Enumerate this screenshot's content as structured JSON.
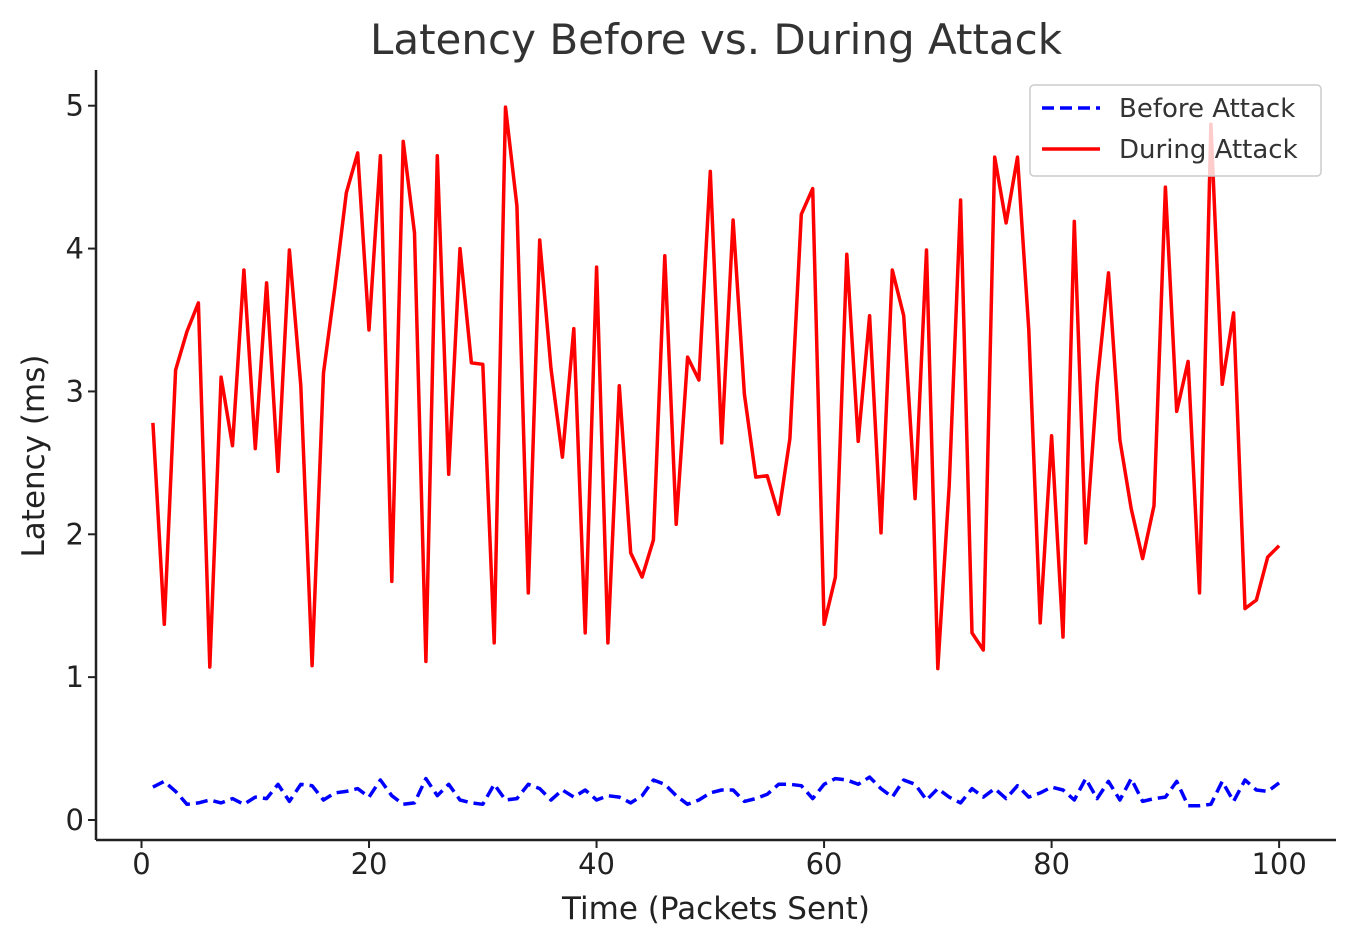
{
  "chart_data": {
    "type": "line",
    "title": "Latency Before vs. During Attack",
    "xlabel": "Time (Packets Sent)",
    "ylabel": "Latency (ms)",
    "xlim": [
      -4,
      105
    ],
    "ylim": [
      -0.14,
      5.25
    ],
    "xticks": [
      0,
      20,
      40,
      60,
      80,
      100
    ],
    "yticks": [
      0,
      1,
      2,
      3,
      4,
      5
    ],
    "grid": false,
    "legend_position": "top-right",
    "x": [
      1,
      2,
      3,
      4,
      5,
      6,
      7,
      8,
      9,
      10,
      11,
      12,
      13,
      14,
      15,
      16,
      17,
      18,
      19,
      20,
      21,
      22,
      23,
      24,
      25,
      26,
      27,
      28,
      29,
      30,
      31,
      32,
      33,
      34,
      35,
      36,
      37,
      38,
      39,
      40,
      41,
      42,
      43,
      44,
      45,
      46,
      47,
      48,
      49,
      50,
      51,
      52,
      53,
      54,
      55,
      56,
      57,
      58,
      59,
      60,
      61,
      62,
      63,
      64,
      65,
      66,
      67,
      68,
      69,
      70,
      71,
      72,
      73,
      74,
      75,
      76,
      77,
      78,
      79,
      80,
      81,
      82,
      83,
      84,
      85,
      86,
      87,
      88,
      89,
      90,
      91,
      92,
      93,
      94,
      95,
      96,
      97,
      98,
      99,
      100
    ],
    "series": [
      {
        "name": "Before Attack",
        "color": "#0000ff",
        "style": "dashed",
        "values": [
          0.23,
          0.27,
          0.2,
          0.11,
          0.12,
          0.14,
          0.12,
          0.15,
          0.11,
          0.16,
          0.15,
          0.25,
          0.13,
          0.25,
          0.24,
          0.14,
          0.19,
          0.2,
          0.22,
          0.16,
          0.28,
          0.17,
          0.11,
          0.12,
          0.29,
          0.17,
          0.25,
          0.14,
          0.12,
          0.11,
          0.25,
          0.14,
          0.15,
          0.25,
          0.22,
          0.14,
          0.21,
          0.16,
          0.21,
          0.14,
          0.17,
          0.16,
          0.12,
          0.17,
          0.28,
          0.25,
          0.17,
          0.11,
          0.14,
          0.19,
          0.21,
          0.21,
          0.13,
          0.15,
          0.18,
          0.25,
          0.25,
          0.24,
          0.15,
          0.25,
          0.29,
          0.28,
          0.25,
          0.3,
          0.22,
          0.16,
          0.28,
          0.25,
          0.14,
          0.22,
          0.16,
          0.12,
          0.22,
          0.16,
          0.22,
          0.15,
          0.24,
          0.16,
          0.19,
          0.23,
          0.21,
          0.14,
          0.29,
          0.15,
          0.27,
          0.14,
          0.29,
          0.13,
          0.15,
          0.16,
          0.27,
          0.1,
          0.1,
          0.11,
          0.27,
          0.13,
          0.28,
          0.21,
          0.2,
          0.26
        ]
      },
      {
        "name": "During Attack",
        "color": "#ff0000",
        "style": "solid",
        "values": [
          2.78,
          1.37,
          3.15,
          3.42,
          3.62,
          1.07,
          3.1,
          2.62,
          3.85,
          2.6,
          3.76,
          2.44,
          3.99,
          3.04,
          1.08,
          3.13,
          3.73,
          4.39,
          4.67,
          3.43,
          4.65,
          1.67,
          4.75,
          4.11,
          1.11,
          4.65,
          2.42,
          4.0,
          3.2,
          3.19,
          1.24,
          4.99,
          4.3,
          1.59,
          4.06,
          3.16,
          2.54,
          3.44,
          1.31,
          3.87,
          1.24,
          3.04,
          1.87,
          1.7,
          1.96,
          3.95,
          2.07,
          3.24,
          3.08,
          4.54,
          2.64,
          4.2,
          2.98,
          2.4,
          2.41,
          2.14,
          2.67,
          4.24,
          4.42,
          1.37,
          1.7,
          3.96,
          2.65,
          3.53,
          2.01,
          3.85,
          3.53,
          2.25,
          3.99,
          1.06,
          2.34,
          4.34,
          1.31,
          1.19,
          4.64,
          4.18,
          4.64,
          3.43,
          1.38,
          2.69,
          1.28,
          4.19,
          1.94,
          3.05,
          3.83,
          2.66,
          2.18,
          1.83,
          2.2,
          4.43,
          2.86,
          3.21,
          1.59,
          4.87,
          3.05,
          3.55,
          1.48,
          1.54,
          1.84,
          1.92
        ]
      }
    ]
  }
}
